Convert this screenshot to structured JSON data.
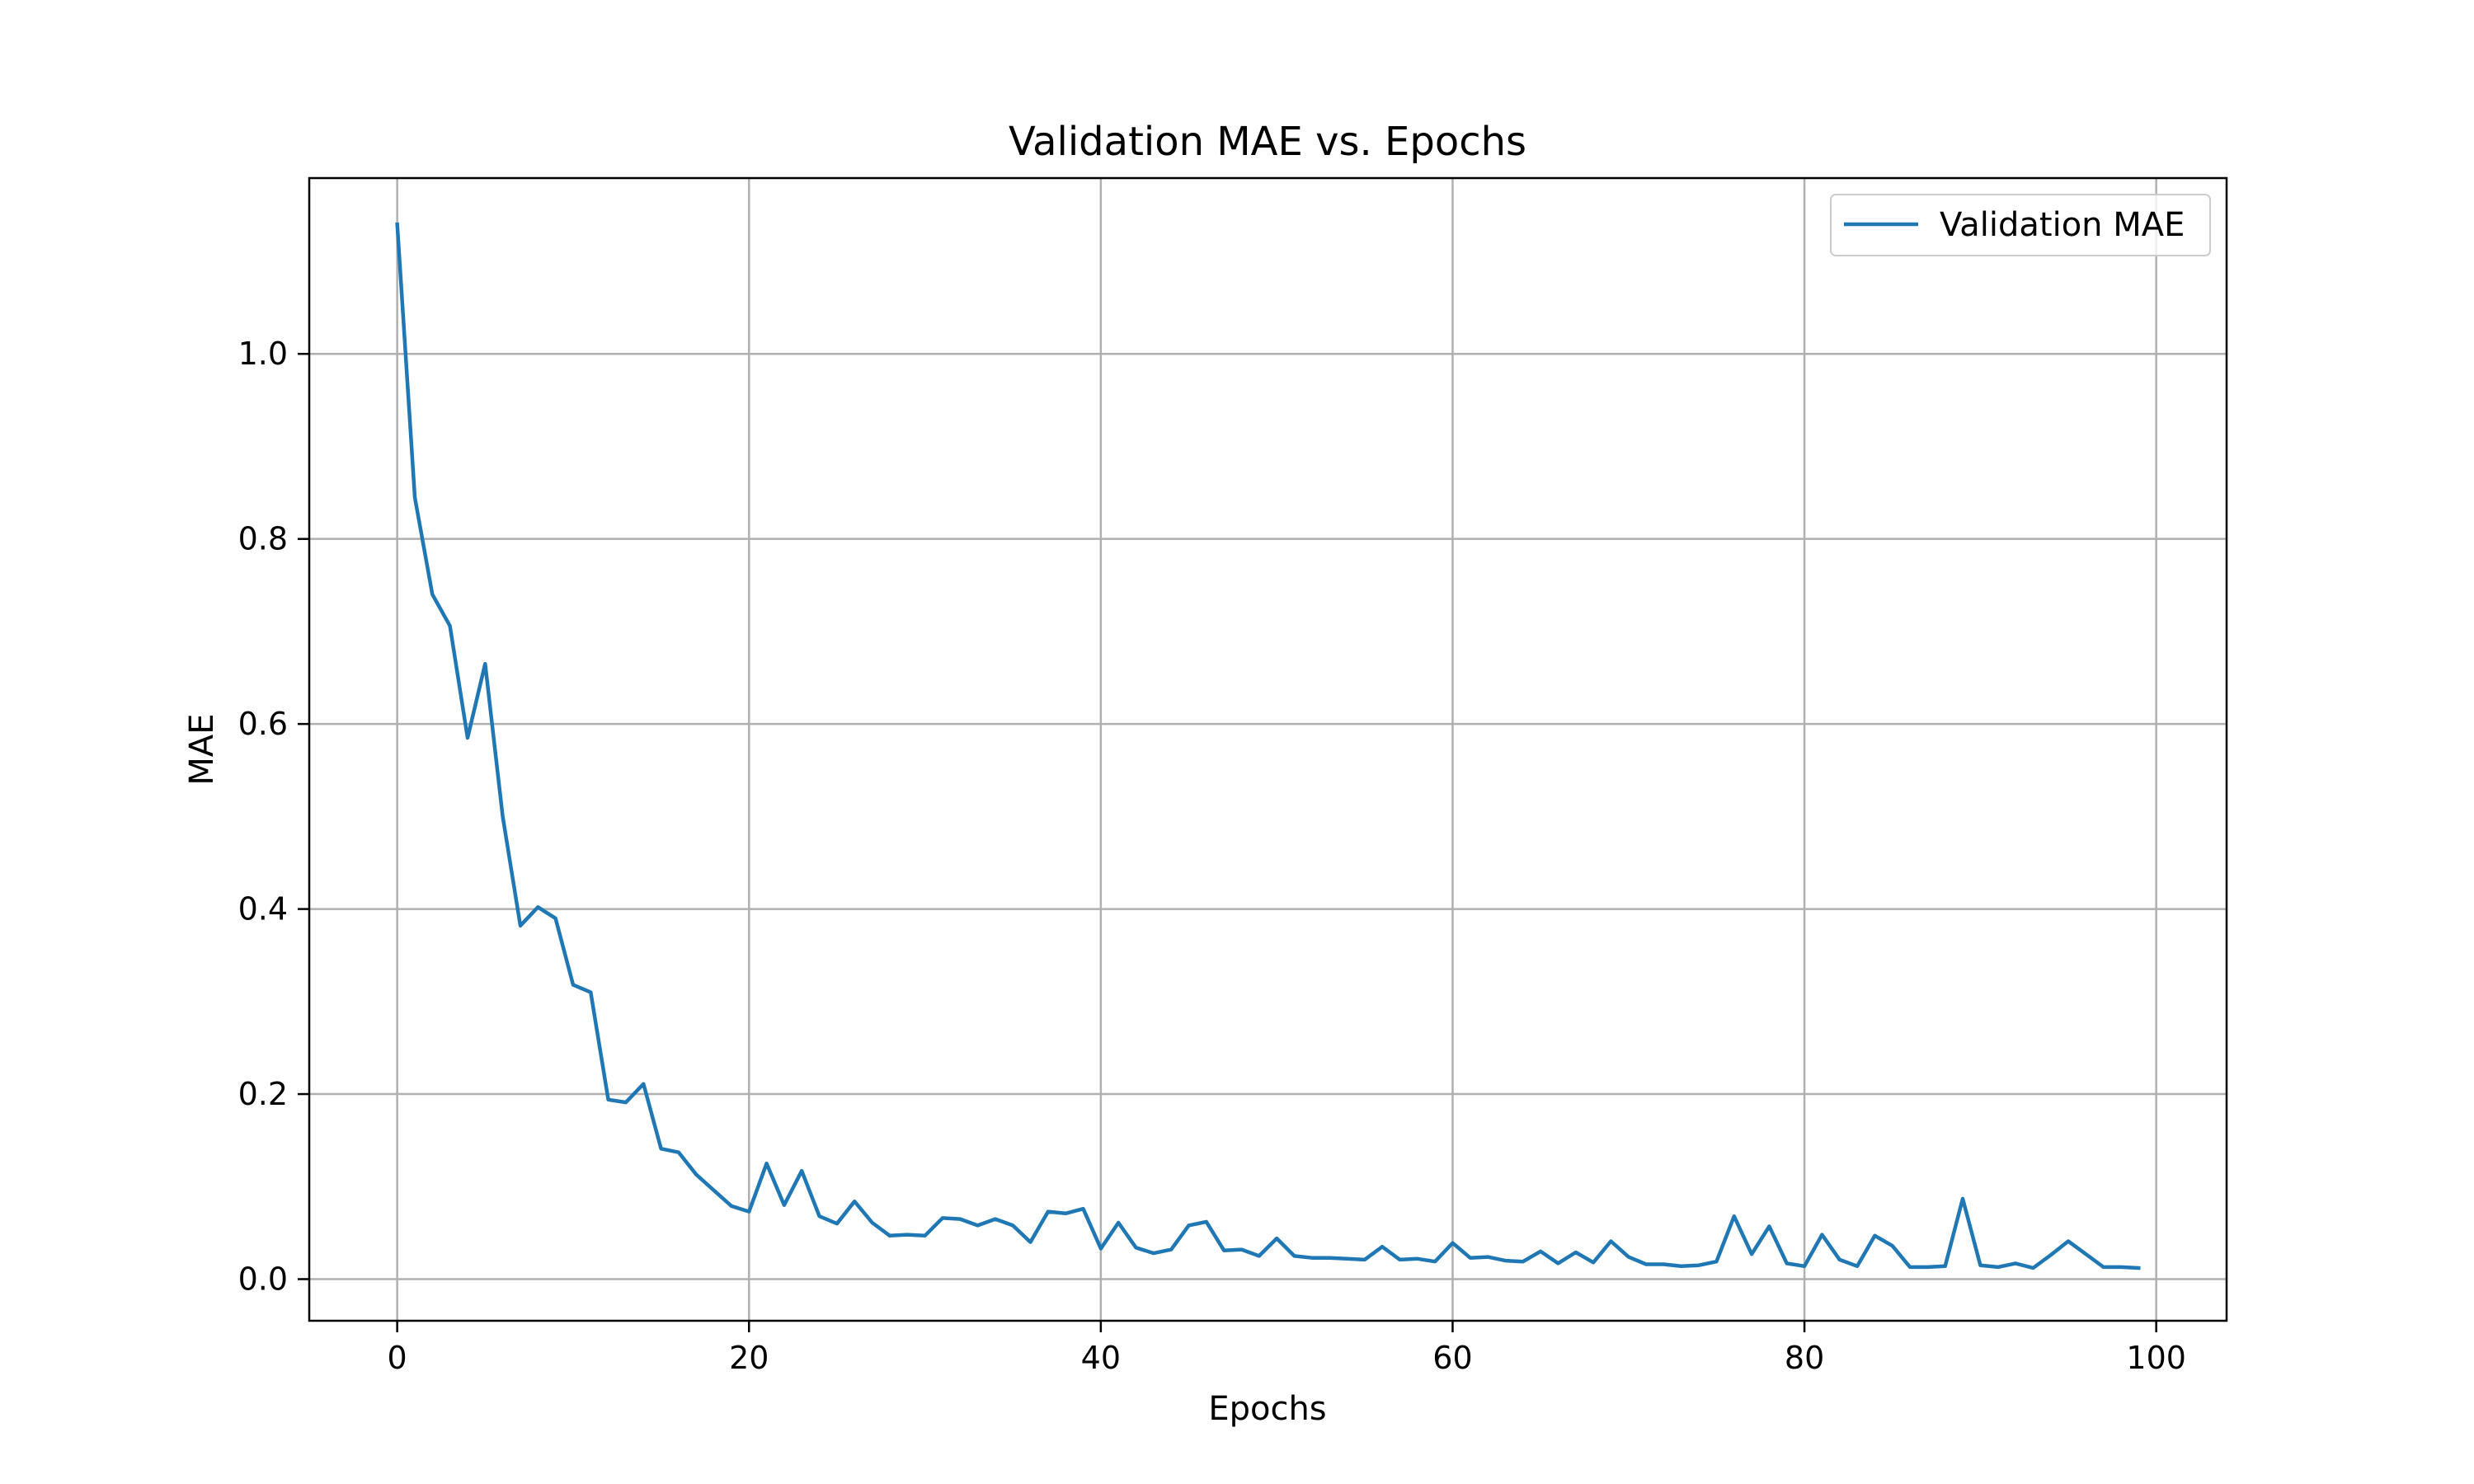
{
  "chart_data": {
    "type": "line",
    "title": "Validation MAE vs. Epochs",
    "xlabel": "Epochs",
    "ylabel": "MAE",
    "xlim": [
      -5,
      104
    ],
    "ylim": [
      -0.045,
      1.19
    ],
    "xticks": [
      0,
      20,
      40,
      60,
      80,
      100
    ],
    "yticks": [
      0.0,
      0.2,
      0.4,
      0.6,
      0.8,
      1.0
    ],
    "xtick_labels": [
      "0",
      "20",
      "40",
      "60",
      "80",
      "100"
    ],
    "ytick_labels": [
      "0.0",
      "0.2",
      "0.4",
      "0.6",
      "0.8",
      "1.0"
    ],
    "grid": true,
    "legend_position": "top-right",
    "series": [
      {
        "name": "Validation MAE",
        "color": "#1f77b4",
        "x": [
          0,
          1,
          2,
          3,
          4,
          5,
          6,
          7,
          8,
          9,
          10,
          11,
          12,
          13,
          14,
          15,
          16,
          17,
          18,
          19,
          20,
          21,
          22,
          23,
          24,
          25,
          26,
          27,
          28,
          29,
          30,
          31,
          32,
          33,
          34,
          35,
          36,
          37,
          38,
          39,
          40,
          41,
          42,
          43,
          44,
          45,
          46,
          47,
          48,
          49,
          50,
          51,
          52,
          53,
          54,
          55,
          56,
          57,
          58,
          59,
          60,
          61,
          62,
          63,
          64,
          65,
          66,
          67,
          68,
          69,
          70,
          71,
          72,
          73,
          74,
          75,
          76,
          77,
          78,
          79,
          80,
          81,
          82,
          83,
          84,
          85,
          86,
          87,
          88,
          89,
          90,
          91,
          92,
          93,
          94,
          95,
          96,
          97,
          98,
          99
        ],
        "values": [
          1.14,
          0.845,
          0.74,
          0.706,
          0.585,
          0.665,
          0.5,
          0.382,
          0.402,
          0.39,
          0.318,
          0.31,
          0.194,
          0.191,
          0.211,
          0.141,
          0.137,
          0.113,
          0.096,
          0.079,
          0.073,
          0.125,
          0.08,
          0.117,
          0.068,
          0.06,
          0.084,
          0.061,
          0.047,
          0.048,
          0.047,
          0.066,
          0.065,
          0.058,
          0.065,
          0.058,
          0.04,
          0.073,
          0.071,
          0.076,
          0.033,
          0.061,
          0.034,
          0.028,
          0.032,
          0.058,
          0.062,
          0.031,
          0.032,
          0.025,
          0.044,
          0.025,
          0.023,
          0.023,
          0.022,
          0.021,
          0.035,
          0.021,
          0.022,
          0.019,
          0.039,
          0.023,
          0.024,
          0.02,
          0.019,
          0.03,
          0.017,
          0.029,
          0.018,
          0.041,
          0.024,
          0.016,
          0.016,
          0.014,
          0.015,
          0.019,
          0.068,
          0.027,
          0.057,
          0.017,
          0.014,
          0.048,
          0.021,
          0.014,
          0.047,
          0.036,
          0.013,
          0.013,
          0.014,
          0.087,
          0.015,
          0.013,
          0.017,
          0.012,
          0.026,
          0.041,
          0.027,
          0.013,
          0.013,
          0.012
        ]
      }
    ]
  }
}
